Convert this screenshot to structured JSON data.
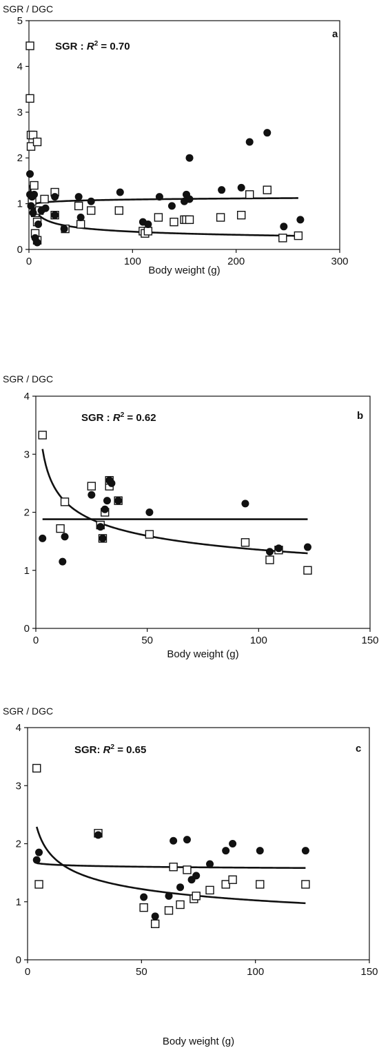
{
  "chart_data": [
    {
      "type": "scatter",
      "panel_label": "a",
      "ylabel": "SGR / DGC",
      "xlabel": "Body weight (g)",
      "annotation": {
        "prefix": "SGR : ",
        "r_sym": "R",
        "sup": "2",
        "suffix": " = 0.70"
      },
      "xlim": [
        0,
        300
      ],
      "ylim": [
        0,
        5
      ],
      "xticks": [
        0,
        100,
        200,
        300
      ],
      "yticks": [
        0,
        1,
        2,
        3,
        4,
        5
      ],
      "grid": false,
      "series": [
        {
          "marker": "square-open",
          "points": [
            [
              1,
              4.45
            ],
            [
              1,
              3.3
            ],
            [
              2,
              2.5
            ],
            [
              4,
              2.5
            ],
            [
              2,
              2.25
            ],
            [
              8,
              2.35
            ],
            [
              5,
              1.4
            ],
            [
              3,
              1.05
            ],
            [
              6,
              0.8
            ],
            [
              8,
              0.6
            ],
            [
              6,
              0.35
            ],
            [
              8,
              0.2
            ],
            [
              10,
              0.85
            ],
            [
              15,
              1.1
            ],
            [
              25,
              1.25
            ],
            [
              25,
              0.75
            ],
            [
              35,
              0.45
            ],
            [
              48,
              0.95
            ],
            [
              50,
              0.55
            ],
            [
              60,
              0.85
            ],
            [
              87,
              0.85
            ],
            [
              110,
              0.4
            ],
            [
              112,
              0.35
            ],
            [
              115,
              0.4
            ],
            [
              125,
              0.7
            ],
            [
              140,
              0.6
            ],
            [
              150,
              0.65
            ],
            [
              152,
              0.65
            ],
            [
              155,
              0.65
            ],
            [
              185,
              0.7
            ],
            [
              205,
              0.75
            ],
            [
              213,
              1.2
            ],
            [
              230,
              1.3
            ],
            [
              245,
              0.25
            ],
            [
              260,
              0.3
            ]
          ]
        },
        {
          "marker": "circle-filled",
          "points": [
            [
              1,
              1.65
            ],
            [
              1,
              1.2
            ],
            [
              2,
              0.95
            ],
            [
              3,
              1.15
            ],
            [
              5,
              1.2
            ],
            [
              4,
              0.8
            ],
            [
              6,
              0.25
            ],
            [
              8,
              0.15
            ],
            [
              9,
              0.55
            ],
            [
              12,
              0.85
            ],
            [
              16,
              0.9
            ],
            [
              25,
              1.15
            ],
            [
              25,
              0.75
            ],
            [
              34,
              0.45
            ],
            [
              48,
              1.15
            ],
            [
              50,
              0.7
            ],
            [
              60,
              1.05
            ],
            [
              88,
              1.25
            ],
            [
              110,
              0.6
            ],
            [
              115,
              0.55
            ],
            [
              126,
              1.15
            ],
            [
              138,
              0.95
            ],
            [
              150,
              1.05
            ],
            [
              152,
              1.2
            ],
            [
              155,
              2.0
            ],
            [
              155,
              1.1
            ],
            [
              186,
              1.3
            ],
            [
              205,
              1.35
            ],
            [
              213,
              2.35
            ],
            [
              230,
              2.55
            ],
            [
              246,
              0.5
            ],
            [
              262,
              0.65
            ]
          ]
        }
      ],
      "fits": [
        {
          "name": "SGR",
          "equation": "power",
          "coef": 1.41,
          "exponent": -0.28,
          "domain": [
            1,
            260
          ]
        },
        {
          "name": "DGC",
          "equation": "power",
          "coef": 0.95,
          "exponent": 0.03,
          "domain": [
            1,
            260
          ]
        }
      ]
    },
    {
      "type": "scatter",
      "panel_label": "b",
      "ylabel": "SGR / DGC",
      "xlabel": "Body weight (g)",
      "annotation": {
        "prefix": "SGR : ",
        "r_sym": "R",
        "sup": "2",
        "suffix": " = 0.62"
      },
      "xlim": [
        0,
        150
      ],
      "ylim": [
        0,
        4
      ],
      "xticks": [
        0,
        50,
        100,
        150
      ],
      "yticks": [
        0,
        1,
        2,
        3,
        4
      ],
      "grid": false,
      "series": [
        {
          "marker": "square-open",
          "points": [
            [
              3,
              3.33
            ],
            [
              11,
              1.72
            ],
            [
              13,
              2.18
            ],
            [
              25,
              2.45
            ],
            [
              29,
              1.78
            ],
            [
              30,
              1.55
            ],
            [
              31,
              2.0
            ],
            [
              33,
              2.45
            ],
            [
              33,
              2.55
            ],
            [
              37,
              2.2
            ],
            [
              51,
              1.62
            ],
            [
              94,
              1.48
            ],
            [
              105,
              1.18
            ],
            [
              109,
              1.35
            ],
            [
              122,
              1.0
            ]
          ]
        },
        {
          "marker": "circle-filled",
          "points": [
            [
              3,
              1.55
            ],
            [
              12,
              1.15
            ],
            [
              13,
              1.58
            ],
            [
              25,
              2.3
            ],
            [
              29,
              1.75
            ],
            [
              30,
              1.55
            ],
            [
              31,
              2.05
            ],
            [
              32,
              2.2
            ],
            [
              33,
              2.55
            ],
            [
              34,
              2.5
            ],
            [
              37,
              2.2
            ],
            [
              51,
              2.0
            ],
            [
              94,
              2.15
            ],
            [
              105,
              1.32
            ],
            [
              109,
              1.38
            ],
            [
              122,
              1.4
            ]
          ]
        }
      ],
      "fits": [
        {
          "name": "SGR",
          "equation": "power",
          "coef": 4.0,
          "exponent": -0.235,
          "domain": [
            3,
            122
          ]
        },
        {
          "name": "DGC",
          "equation": "power",
          "coef": 1.88,
          "exponent": 0.0,
          "domain": [
            3,
            122
          ]
        }
      ]
    },
    {
      "type": "scatter",
      "panel_label": "c",
      "ylabel": "SGR / DGC",
      "xlabel": "Body weight (g)",
      "annotation": {
        "prefix": "SGR: ",
        "r_sym": "R",
        "sup": "2",
        "suffix": " = 0.65"
      },
      "xlim": [
        0,
        150
      ],
      "ylim": [
        0,
        4
      ],
      "xticks": [
        0,
        50,
        100,
        150
      ],
      "yticks": [
        0,
        1,
        2,
        3,
        4
      ],
      "grid": false,
      "series": [
        {
          "marker": "square-open",
          "points": [
            [
              4,
              3.3
            ],
            [
              5,
              1.3
            ],
            [
              31,
              2.18
            ],
            [
              51,
              0.9
            ],
            [
              56,
              0.62
            ],
            [
              62,
              0.85
            ],
            [
              64,
              1.6
            ],
            [
              67,
              0.95
            ],
            [
              70,
              1.55
            ],
            [
              73,
              1.05
            ],
            [
              74,
              1.1
            ],
            [
              80,
              1.2
            ],
            [
              87,
              1.3
            ],
            [
              90,
              1.38
            ],
            [
              102,
              1.3
            ],
            [
              122,
              1.3
            ]
          ]
        },
        {
          "marker": "circle-filled",
          "points": [
            [
              4,
              1.72
            ],
            [
              5,
              1.85
            ],
            [
              31,
              2.15
            ],
            [
              51,
              1.08
            ],
            [
              56,
              0.75
            ],
            [
              62,
              1.1
            ],
            [
              64,
              2.05
            ],
            [
              67,
              1.25
            ],
            [
              70,
              2.07
            ],
            [
              72,
              1.38
            ],
            [
              74,
              1.45
            ],
            [
              80,
              1.65
            ],
            [
              87,
              1.88
            ],
            [
              90,
              2.0
            ],
            [
              102,
              1.88
            ],
            [
              122,
              1.88
            ]
          ]
        }
      ],
      "fits": [
        {
          "name": "SGR",
          "equation": "power",
          "coef": 3.24,
          "exponent": -0.25,
          "domain": [
            4,
            122
          ]
        },
        {
          "name": "DGC",
          "equation": "power",
          "coef": 1.7,
          "exponent": -0.015,
          "domain": [
            4,
            122
          ]
        }
      ]
    }
  ]
}
